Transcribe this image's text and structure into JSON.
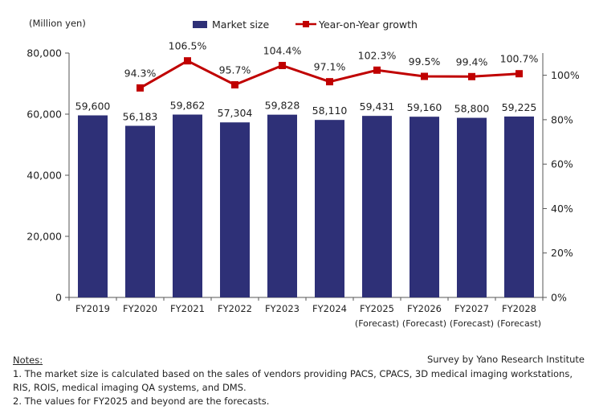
{
  "chart_data": {
    "type": "bar",
    "unit_label": "(Million yen)",
    "categories": [
      "FY2019",
      "FY2020",
      "FY2021",
      "FY2022",
      "FY2023",
      "FY2024",
      "FY2025",
      "FY2026",
      "FY2027",
      "FY2028"
    ],
    "category_sublabels": [
      "",
      "",
      "",
      "",
      "",
      "",
      "(Forecast)",
      "(Forecast)",
      "(Forecast)",
      "(Forecast)"
    ],
    "series": [
      {
        "name": "Market size",
        "type": "bar",
        "axis": "left",
        "color": "#2e3077",
        "values": [
          59600,
          56183,
          59862,
          57304,
          59828,
          58110,
          59431,
          59160,
          58800,
          59225
        ],
        "labels": [
          "59,600",
          "56,183",
          "59,862",
          "57,304",
          "59,828",
          "58,110",
          "59,431",
          "59,160",
          "58,800",
          "59,225"
        ]
      },
      {
        "name": "Year-on-Year growth",
        "type": "line",
        "axis": "right",
        "color": "#c00000",
        "values": [
          null,
          94.3,
          106.5,
          95.7,
          104.4,
          97.1,
          102.3,
          99.5,
          99.4,
          100.7
        ],
        "labels": [
          "",
          "94.3%",
          "106.5%",
          "95.7%",
          "104.4%",
          "97.1%",
          "102.3%",
          "99.5%",
          "99.4%",
          "100.7%"
        ]
      }
    ],
    "y_left": {
      "lim": [
        0,
        80000
      ],
      "ticks": [
        0,
        20000,
        40000,
        60000,
        80000
      ],
      "tick_labels": [
        "0",
        "20,000",
        "40,000",
        "60,000",
        "80,000"
      ]
    },
    "y_right": {
      "lim": [
        0,
        110
      ],
      "ticks": [
        0,
        20,
        40,
        60,
        80,
        100
      ],
      "tick_labels": [
        "0%",
        "20%",
        "40%",
        "60%",
        "80%",
        "100%"
      ]
    },
    "grid": false,
    "legend": "top-center"
  },
  "notes": {
    "title": "Notes:",
    "lines": [
      "1. The market size is calculated based on the sales of vendors providing PACS, CPACS, 3D medical imaging workstations,",
      "RIS, ROIS, medical imaging QA systems, and DMS.",
      "2. The values for FY2025 and beyond are the forecasts."
    ]
  },
  "source": "Survey by Yano Research Institute"
}
